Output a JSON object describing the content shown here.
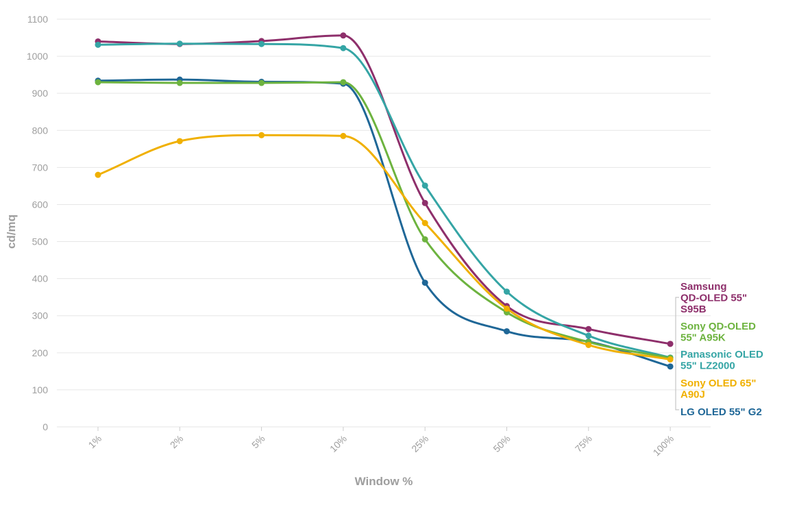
{
  "chart_data": {
    "type": "line",
    "xlabel": "Window %",
    "ylabel": "cd/mq",
    "categories": [
      "1%",
      "2%",
      "5%",
      "10%",
      "25%",
      "50%",
      "75%",
      "100%"
    ],
    "ylim": [
      0,
      1100
    ],
    "yticks": [
      0,
      100,
      200,
      300,
      400,
      500,
      600,
      700,
      800,
      900,
      1000,
      1100
    ],
    "grid": true,
    "legend_placement": "right",
    "series": [
      {
        "name": "Samsung QD-OLED 55\" S95B",
        "label_lines": [
          "Samsung",
          "QD-OLED 55\"",
          "S95B"
        ],
        "color": "#8e2f6b",
        "values": [
          1040,
          1033,
          1041,
          1056,
          604,
          326,
          264,
          224
        ]
      },
      {
        "name": "Panasonic OLED 55\" LZ2000",
        "label_lines": [
          "Panasonic OLED",
          "55\" LZ2000"
        ],
        "color": "#35a5a5",
        "values": [
          1031,
          1034,
          1033,
          1022,
          651,
          365,
          246,
          187
        ]
      },
      {
        "name": "LG OLED 55\" G2",
        "label_lines": [
          "LG OLED 55\" G2"
        ],
        "color": "#1f6797",
        "values": [
          934,
          937,
          931,
          926,
          389,
          258,
          230,
          163
        ]
      },
      {
        "name": "Sony QD-OLED 55\" A95K",
        "label_lines": [
          "Sony QD-OLED",
          "55\" A95K"
        ],
        "color": "#6db33f",
        "values": [
          930,
          928,
          928,
          930,
          506,
          309,
          229,
          186
        ]
      },
      {
        "name": "Sony OLED 65\" A90J",
        "label_lines": [
          "Sony OLED 65\"",
          "A90J"
        ],
        "color": "#f0b000",
        "values": [
          680,
          771,
          787,
          785,
          550,
          319,
          221,
          182
        ]
      }
    ]
  },
  "colors": {
    "grid": "#e6e6e6",
    "text": "#9e9e9e"
  }
}
